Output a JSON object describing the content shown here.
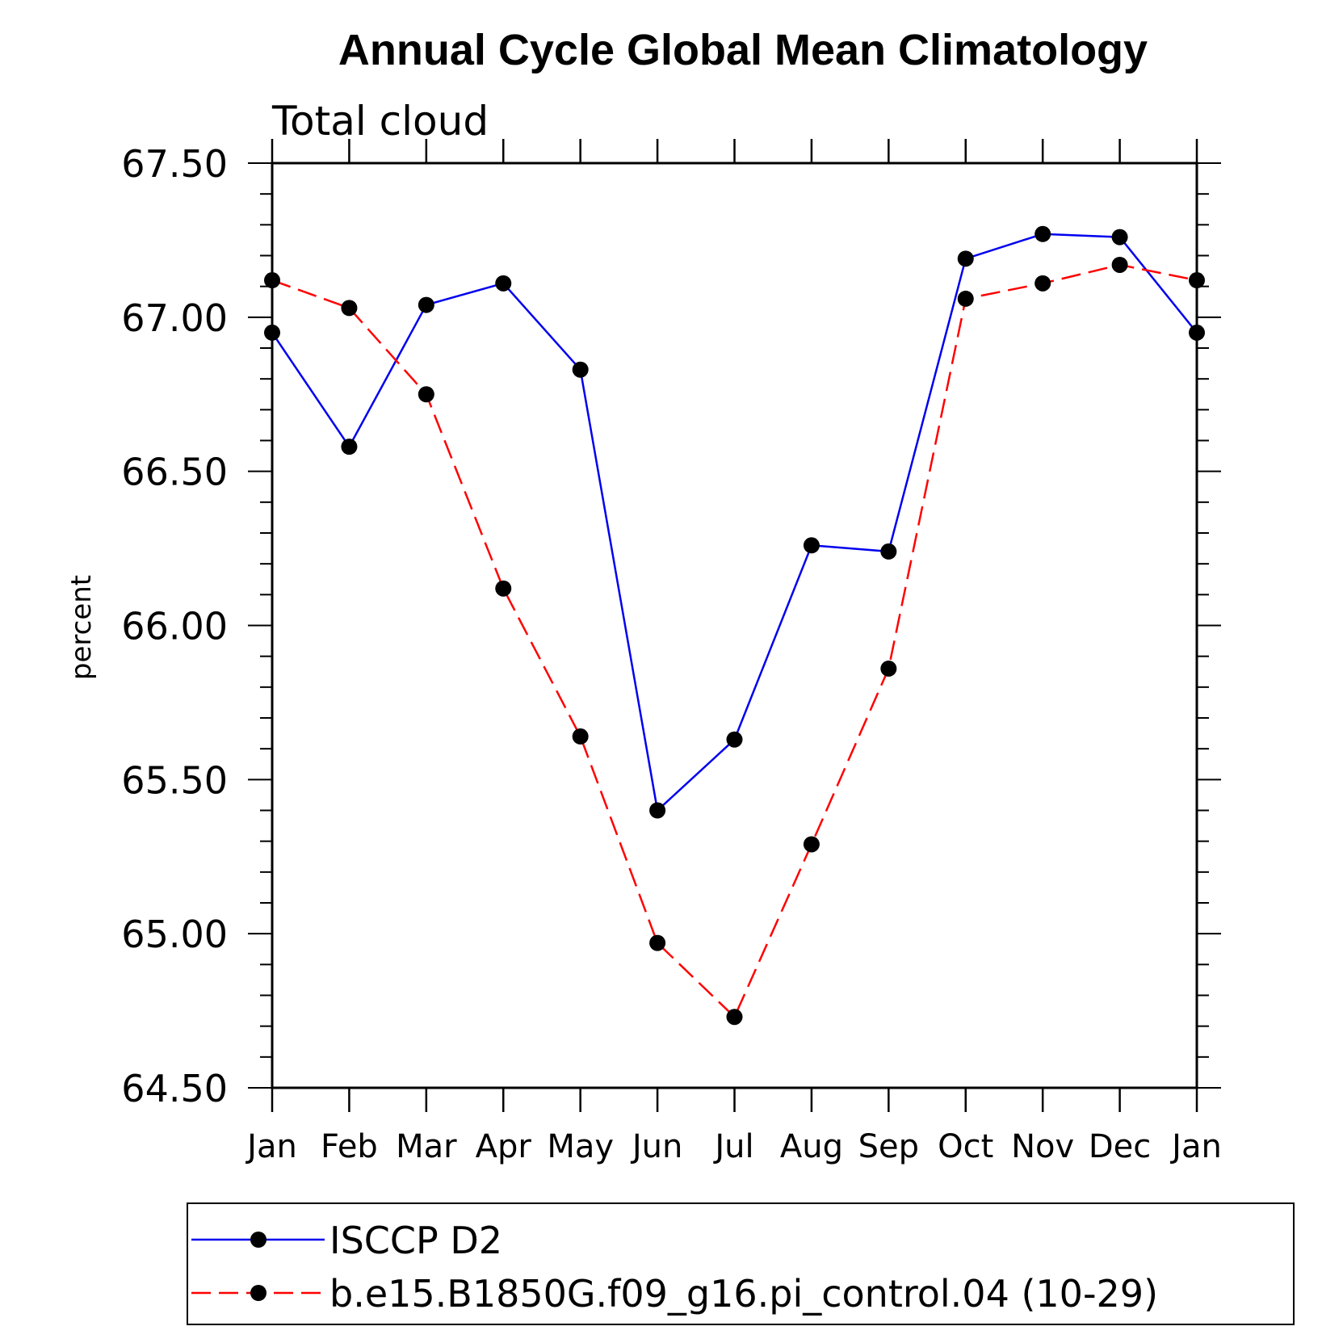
{
  "chart_data": {
    "type": "line",
    "title": "Annual Cycle Global Mean Climatology",
    "subtitle": "Total cloud",
    "xlabel": "",
    "ylabel": "percent",
    "categories": [
      "Jan",
      "Feb",
      "Mar",
      "Apr",
      "May",
      "Jun",
      "Jul",
      "Aug",
      "Sep",
      "Oct",
      "Nov",
      "Dec",
      "Jan"
    ],
    "ylim": [
      64.5,
      67.5
    ],
    "yticks": [
      "67.50",
      "67.00",
      "66.50",
      "66.00",
      "65.50",
      "65.00",
      "64.50"
    ],
    "series": [
      {
        "name": "ISCCP D2",
        "color": "#0000ee",
        "dash": "solid",
        "values": [
          66.95,
          66.58,
          67.04,
          67.11,
          66.83,
          65.4,
          65.63,
          66.26,
          66.24,
          67.19,
          67.27,
          67.26,
          66.95
        ]
      },
      {
        "name": "b.e15.B1850G.f09_g16.pi_control.04 (10-29)",
        "color": "#ff0000",
        "dash": "dashed",
        "values": [
          67.12,
          67.03,
          66.75,
          66.12,
          65.64,
          64.97,
          64.73,
          65.29,
          65.86,
          67.06,
          67.11,
          67.17,
          67.12
        ]
      }
    ],
    "legend_position": "bottom",
    "marker_color": "#000000"
  }
}
